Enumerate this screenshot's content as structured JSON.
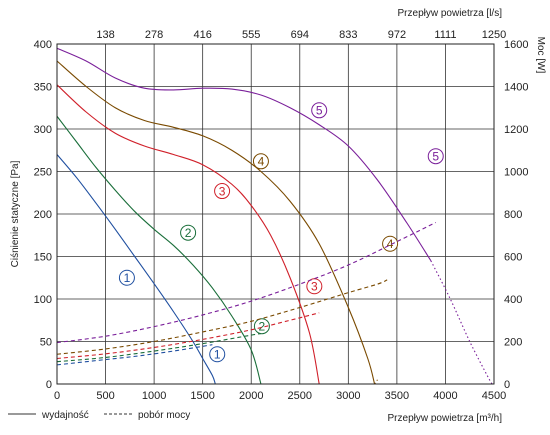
{
  "chart_data": {
    "type": "line",
    "xlabel": "Przepływ powietrza [m³/h]",
    "x2label": "Przepływ powietrza [l/s]",
    "ylabel": "Ciśnienie statyczne [Pa]",
    "y2label": "Moc [W]",
    "xlim": [
      0,
      4500
    ],
    "ylim": [
      0,
      400
    ],
    "y2lim": [
      0,
      1600
    ],
    "x_ticks": [
      "0",
      "500",
      "1000",
      "1500",
      "2000",
      "2500",
      "3000",
      "3500",
      "4000",
      "4500"
    ],
    "x2_ticks": [
      "138",
      "278",
      "416",
      "555",
      "694",
      "833",
      "972",
      "1111",
      "1250"
    ],
    "y_ticks": [
      "0",
      "50",
      "100",
      "150",
      "200",
      "250",
      "300",
      "350",
      "400"
    ],
    "y2_ticks": [
      "0",
      "200",
      "400",
      "600",
      "800",
      "1000",
      "1200",
      "1400",
      "1600"
    ],
    "grid": true,
    "legend": {
      "position": "bottom-left",
      "entries": [
        {
          "label": "wydajność",
          "style": "solid"
        },
        {
          "label": "pobór mocy",
          "style": "dashed"
        }
      ]
    },
    "series": [
      {
        "label": "1",
        "color": "#1f4fa0",
        "pressure": [
          [
            0,
            270
          ],
          [
            200,
            243
          ],
          [
            400,
            213
          ],
          [
            600,
            182
          ],
          [
            800,
            150
          ],
          [
            1000,
            118
          ],
          [
            1200,
            85
          ],
          [
            1400,
            50
          ],
          [
            1500,
            30
          ],
          [
            1600,
            10
          ],
          [
            1630,
            0
          ]
        ],
        "power": [
          [
            0,
            90
          ],
          [
            400,
            110
          ],
          [
            800,
            130
          ],
          [
            1200,
            155
          ],
          [
            1600,
            185
          ]
        ],
        "pressure_label_at": [
          720,
          125
        ],
        "power_label_at": [
          1650,
          35
        ]
      },
      {
        "label": "2",
        "color": "#1a6e3a",
        "pressure": [
          [
            0,
            315
          ],
          [
            200,
            285
          ],
          [
            400,
            255
          ],
          [
            600,
            228
          ],
          [
            800,
            203
          ],
          [
            1000,
            182
          ],
          [
            1200,
            163
          ],
          [
            1400,
            140
          ],
          [
            1600,
            113
          ],
          [
            1800,
            80
          ],
          [
            2000,
            40
          ],
          [
            2100,
            0
          ]
        ],
        "power": [
          [
            0,
            105
          ],
          [
            500,
            125
          ],
          [
            1000,
            155
          ],
          [
            1500,
            190
          ],
          [
            2000,
            230
          ],
          [
            2100,
            237
          ]
        ],
        "pressure_label_at": [
          1350,
          178
        ],
        "power_label_at": [
          2110,
          68
        ]
      },
      {
        "label": "3",
        "color": "#d0202a",
        "pressure": [
          [
            0,
            352
          ],
          [
            300,
            320
          ],
          [
            600,
            295
          ],
          [
            900,
            280
          ],
          [
            1200,
            270
          ],
          [
            1500,
            258
          ],
          [
            1800,
            235
          ],
          [
            2000,
            210
          ],
          [
            2200,
            175
          ],
          [
            2400,
            125
          ],
          [
            2600,
            60
          ],
          [
            2700,
            0
          ]
        ],
        "power": [
          [
            0,
            120
          ],
          [
            500,
            142
          ],
          [
            1000,
            172
          ],
          [
            1500,
            210
          ],
          [
            2000,
            255
          ],
          [
            2400,
            300
          ],
          [
            2700,
            335
          ]
        ],
        "pressure_label_at": [
          1700,
          227
        ],
        "power_label_at": [
          2650,
          115
        ]
      },
      {
        "label": "4",
        "color": "#7a4a00",
        "pressure": [
          [
            0,
            380
          ],
          [
            300,
            350
          ],
          [
            600,
            325
          ],
          [
            900,
            310
          ],
          [
            1200,
            302
          ],
          [
            1500,
            292
          ],
          [
            1800,
            275
          ],
          [
            2100,
            250
          ],
          [
            2400,
            215
          ],
          [
            2700,
            165
          ],
          [
            3000,
            90
          ],
          [
            3200,
            30
          ],
          [
            3270,
            0
          ]
        ],
        "power": [
          [
            0,
            140
          ],
          [
            500,
            165
          ],
          [
            1000,
            200
          ],
          [
            1500,
            245
          ],
          [
            2000,
            295
          ],
          [
            2500,
            360
          ],
          [
            3000,
            430
          ],
          [
            3300,
            470
          ],
          [
            3400,
            490
          ]
        ],
        "power_dotted": [
          [
            3270,
            0
          ],
          [
            3300,
            20
          ]
        ],
        "pressure_label_at": [
          2100,
          262
        ],
        "power_label_at": [
          3430,
          165
        ]
      },
      {
        "label": "5",
        "color": "#7a1f9a",
        "pressure": [
          [
            0,
            395
          ],
          [
            300,
            380
          ],
          [
            600,
            360
          ],
          [
            900,
            348
          ],
          [
            1200,
            346
          ],
          [
            1500,
            348
          ],
          [
            1800,
            347
          ],
          [
            2100,
            340
          ],
          [
            2400,
            325
          ],
          [
            2700,
            305
          ],
          [
            3000,
            280
          ],
          [
            3300,
            240
          ],
          [
            3600,
            190
          ],
          [
            3850,
            145
          ]
        ],
        "pressure_dotted": [
          [
            3850,
            145
          ],
          [
            4050,
            100
          ],
          [
            4250,
            50
          ],
          [
            4430,
            10
          ],
          [
            4480,
            0
          ]
        ],
        "power": [
          [
            0,
            195
          ],
          [
            500,
            225
          ],
          [
            1000,
            270
          ],
          [
            1500,
            325
          ],
          [
            2000,
            390
          ],
          [
            2500,
            470
          ],
          [
            3000,
            560
          ],
          [
            3500,
            670
          ],
          [
            3900,
            760
          ]
        ],
        "pressure_label_at": [
          2700,
          322
        ],
        "power_label_at": [
          3900,
          268
        ]
      }
    ]
  }
}
